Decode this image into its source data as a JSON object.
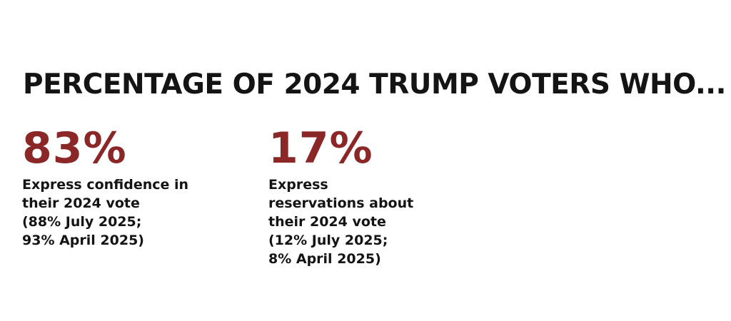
{
  "chart_data": {
    "type": "table",
    "title": "PERCENTAGE OF 2024 TRUMP VOTERS WHO...",
    "colors": {
      "value": "#8b2727",
      "text": "#141414",
      "background": "#ffffff"
    },
    "stats": [
      {
        "value": "83%",
        "description": "Express confidence in\ntheir 2024 vote\n(88% July 2025;\n93% April 2025)"
      },
      {
        "value": "17%",
        "description": "Express\nreservations about\ntheir 2024 vote\n(12% July 2025;\n8% April 2025)"
      }
    ]
  }
}
